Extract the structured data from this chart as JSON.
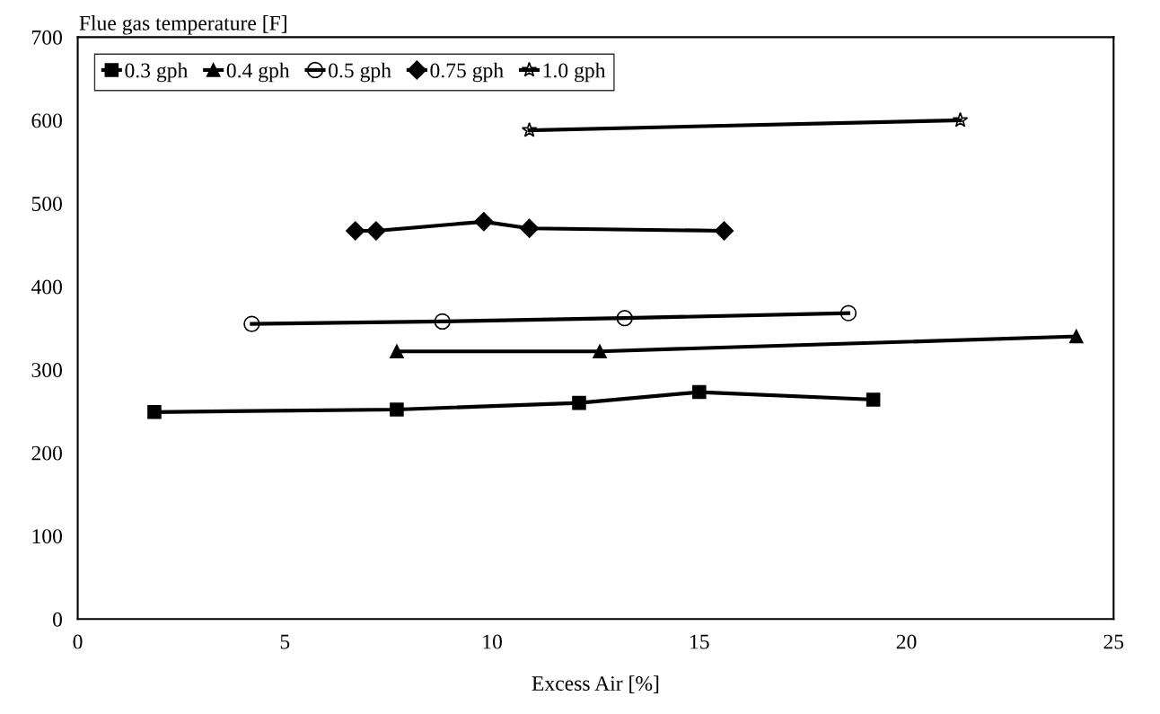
{
  "chart_data": {
    "type": "line",
    "ylabel": "Flue gas temperature [F]",
    "xlabel": "Excess Air [%]",
    "xlim": [
      0,
      25
    ],
    "xticks": [
      0,
      5,
      10,
      15,
      20,
      25
    ],
    "ylim": [
      0,
      700
    ],
    "yticks": [
      0,
      100,
      200,
      300,
      400,
      500,
      600,
      700
    ],
    "grid": false,
    "legend": "top left",
    "line_style": "solid",
    "series": [
      {
        "name": "0.3 gph",
        "color": "#000000",
        "marker": "square",
        "x": [
          1.85,
          7.7,
          12.1,
          15.0,
          19.2
        ],
        "values": [
          249,
          252,
          260,
          273,
          264
        ]
      },
      {
        "name": "0.4 gph",
        "color": "#000000",
        "marker": "triangle",
        "x": [
          7.7,
          12.6,
          24.1
        ],
        "values": [
          322,
          322,
          340
        ]
      },
      {
        "name": "0.5 gph",
        "color": "#000000",
        "marker": "circle",
        "x": [
          4.2,
          8.8,
          13.2,
          18.6
        ],
        "values": [
          355,
          358,
          362,
          368
        ]
      },
      {
        "name": "0.75 gph",
        "color": "#000000",
        "marker": "diamond",
        "x": [
          6.7,
          7.2,
          9.8,
          10.9,
          15.6
        ],
        "values": [
          467,
          467,
          478,
          470,
          467
        ]
      },
      {
        "name": "1.0 gph",
        "color": "#000000",
        "marker": "star",
        "x": [
          10.9,
          21.3
        ],
        "values": [
          588,
          600
        ]
      }
    ]
  }
}
